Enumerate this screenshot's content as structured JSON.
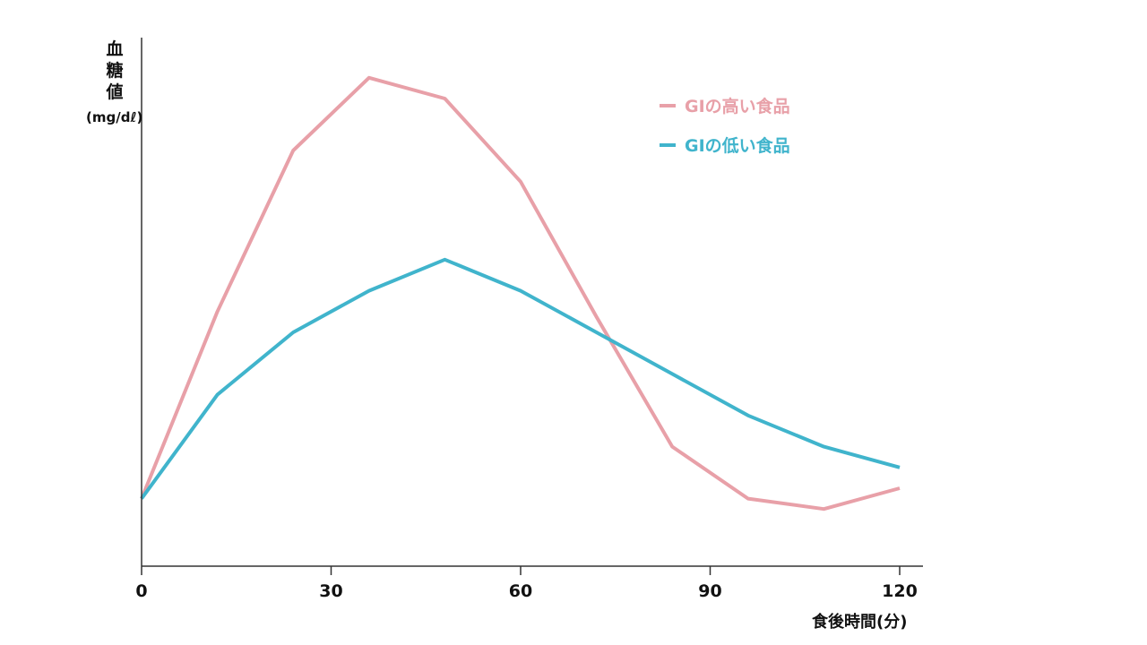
{
  "chart_data": {
    "type": "line",
    "ylabel": "血糖値",
    "yunit": "(mg/dℓ)",
    "xlabel": "食後時間(分)",
    "xlim": [
      0,
      122
    ],
    "ylim": [
      0,
      100
    ],
    "xticks": [
      "0",
      "30",
      "60",
      "90",
      "120"
    ],
    "xtick_values": [
      0,
      30,
      60,
      90,
      120
    ],
    "legend_position": "top-right",
    "series": [
      {
        "name": "GIの高い食品",
        "color": "#e8a0a8",
        "x": [
          0,
          12,
          24,
          36,
          48,
          60,
          72,
          84,
          96,
          108,
          120
        ],
        "y": [
          13,
          49,
          80,
          94,
          90,
          74,
          48,
          23,
          13,
          11,
          15
        ]
      },
      {
        "name": "GIの低い食品",
        "color": "#40b4cc",
        "x": [
          0,
          12,
          24,
          36,
          48,
          60,
          72,
          84,
          96,
          108,
          120
        ],
        "y": [
          13,
          33,
          45,
          53,
          59,
          53,
          45,
          37,
          29,
          23,
          19
        ]
      }
    ]
  }
}
